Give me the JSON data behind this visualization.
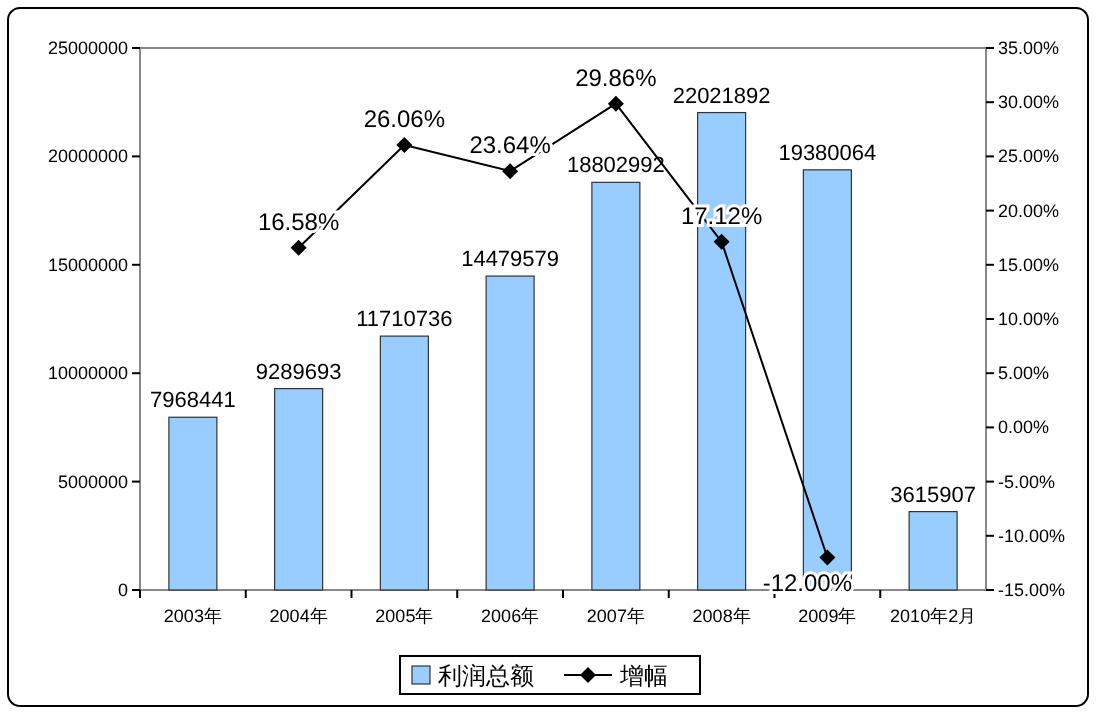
{
  "chart_data": {
    "type": "bar",
    "categories": [
      "2003年",
      "2004年",
      "2005年",
      "2006年",
      "2007年",
      "2008年",
      "2009年",
      "2010年2月"
    ],
    "series": [
      {
        "name": "利润总额",
        "color": "#99ccff",
        "values": [
          7968441,
          9289693,
          11710736,
          14479579,
          18802992,
          22021892,
          19380064,
          3615907
        ],
        "value_labels": [
          "7968441",
          "9289693",
          "11710736",
          "14479579",
          "18802992",
          "22021892",
          "19380064",
          "3615907"
        ]
      },
      {
        "name": "增幅",
        "type": "line",
        "axis": "y2",
        "color": "#000000",
        "marker": "diamond",
        "values": [
          null,
          16.58,
          26.06,
          23.64,
          29.86,
          17.12,
          -12.0,
          null
        ],
        "value_labels": [
          null,
          "16.58%",
          "26.06%",
          "23.64%",
          "29.86%",
          "17.12%",
          "-12.00%",
          null
        ]
      }
    ],
    "ylim": [
      0,
      25000000
    ],
    "yticks": [
      0,
      5000000,
      10000000,
      15000000,
      20000000,
      25000000
    ],
    "y2lim": [
      -15,
      35
    ],
    "y2ticks": [
      {
        "value": -15,
        "label": "-15.00%"
      },
      {
        "value": -10,
        "label": "-10.00%"
      },
      {
        "value": -5,
        "label": "-5.00%"
      },
      {
        "value": 0,
        "label": "0.00%"
      },
      {
        "value": 5,
        "label": "5.00%"
      },
      {
        "value": 10,
        "label": "10.00%"
      },
      {
        "value": 15,
        "label": "15.00%"
      },
      {
        "value": 20,
        "label": "20.00%"
      },
      {
        "value": 25,
        "label": "25.00%"
      },
      {
        "value": 30,
        "label": "30.00%"
      },
      {
        "value": 35,
        "label": "35.00%"
      }
    ],
    "legend": "bottom",
    "grid": false
  }
}
